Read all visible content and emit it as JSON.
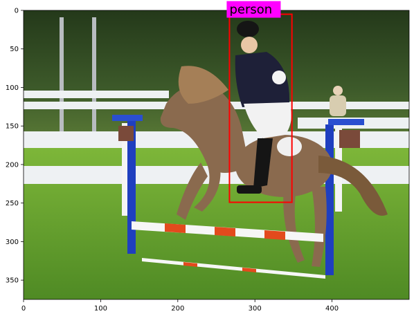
{
  "figure": {
    "image_extent": {
      "x": [
        0,
        500
      ],
      "y": [
        375,
        0
      ]
    },
    "xticks": [
      0,
      100,
      200,
      300,
      400
    ],
    "yticks": [
      0,
      50,
      100,
      150,
      200,
      250,
      300,
      350
    ]
  },
  "detections": [
    {
      "label": "person",
      "box": {
        "x1": 267,
        "y1": 5,
        "x2": 348,
        "y2": 249
      },
      "edge_color": "#ff0000",
      "label_bg": "#ff00ff"
    }
  ],
  "colors": {
    "sky_trees": "#2f4a22",
    "grass": "#6aa832",
    "fence": "#eef1f3",
    "jump_post": "#1f3fbf",
    "pole_red": "#e34a1d",
    "pony": "#8a6a4e"
  }
}
